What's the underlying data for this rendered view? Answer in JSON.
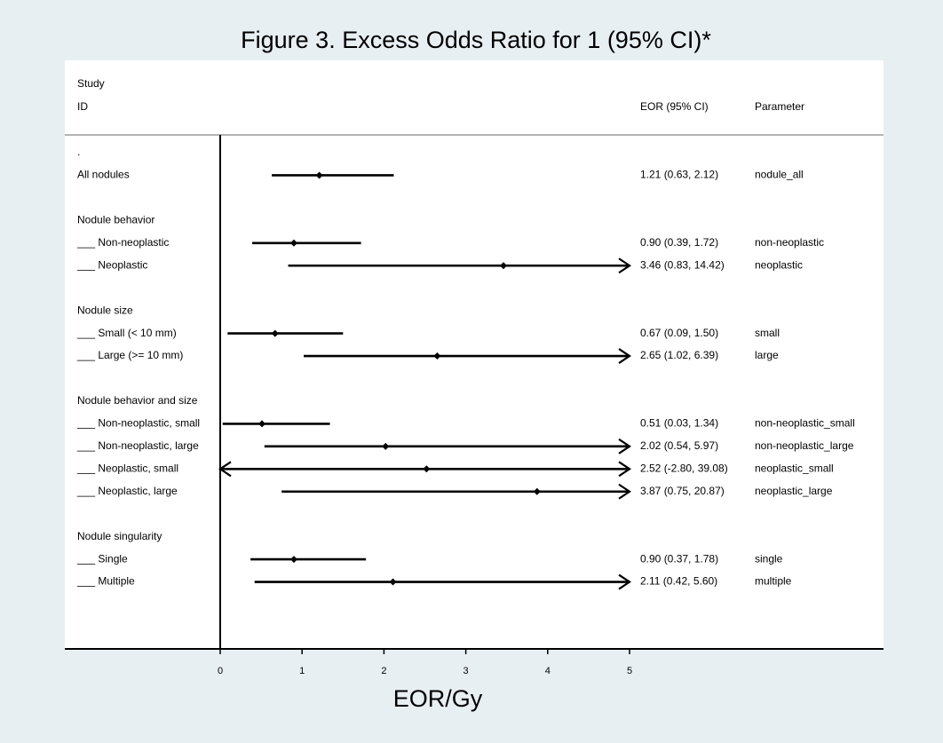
{
  "chart_data": {
    "type": "forest",
    "title": "Figure 3. Excess Odds Ratio for 1 (95% CI)*",
    "xlabel": "EOR/Gy",
    "xlim": [
      0,
      5
    ],
    "xticks": [
      0,
      1,
      2,
      3,
      4,
      5
    ],
    "header": {
      "study_line1": "Study",
      "study_line2": "ID",
      "eor_col": "EOR (95% CI)",
      "param_col": "Parameter"
    },
    "rows": [
      {
        "kind": "label",
        "label": "."
      },
      {
        "kind": "estimate",
        "label": "All nodules",
        "estimate": 1.21,
        "lower": 0.63,
        "upper": 2.12,
        "eor_text": "1.21 (0.63, 2.12)",
        "parameter": "nodule_all"
      },
      {
        "kind": "blank"
      },
      {
        "kind": "label",
        "label": "Nodule behavior"
      },
      {
        "kind": "estimate",
        "label": "___ Non-neoplastic",
        "estimate": 0.9,
        "lower": 0.39,
        "upper": 1.72,
        "eor_text": "0.90 (0.39, 1.72)",
        "parameter": "non-neoplastic"
      },
      {
        "kind": "estimate",
        "label": "___ Neoplastic",
        "estimate": 3.46,
        "lower": 0.83,
        "upper": 14.42,
        "eor_text": "3.46 (0.83, 14.42)",
        "parameter": "neoplastic"
      },
      {
        "kind": "blank"
      },
      {
        "kind": "label",
        "label": "Nodule size"
      },
      {
        "kind": "estimate",
        "label": "___ Small (< 10 mm)",
        "estimate": 0.67,
        "lower": 0.09,
        "upper": 1.5,
        "eor_text": "0.67 (0.09, 1.50)",
        "parameter": "small"
      },
      {
        "kind": "estimate",
        "label": "___ Large (>= 10 mm)",
        "estimate": 2.65,
        "lower": 1.02,
        "upper": 6.39,
        "eor_text": "2.65 (1.02, 6.39)",
        "parameter": "large"
      },
      {
        "kind": "blank"
      },
      {
        "kind": "label",
        "label": "Nodule behavior and size"
      },
      {
        "kind": "estimate",
        "label": "___ Non-neoplastic, small",
        "estimate": 0.51,
        "lower": 0.03,
        "upper": 1.34,
        "eor_text": "0.51 (0.03, 1.34)",
        "parameter": "non-neoplastic_small"
      },
      {
        "kind": "estimate",
        "label": "___ Non-neoplastic, large",
        "estimate": 2.02,
        "lower": 0.54,
        "upper": 5.97,
        "eor_text": "2.02 (0.54, 5.97)",
        "parameter": "non-neoplastic_large"
      },
      {
        "kind": "estimate",
        "label": "___ Neoplastic, small",
        "estimate": 2.52,
        "lower": -2.8,
        "upper": 39.08,
        "eor_text": "2.52 (-2.80, 39.08)",
        "parameter": "neoplastic_small"
      },
      {
        "kind": "estimate",
        "label": "___ Neoplastic, large",
        "estimate": 3.87,
        "lower": 0.75,
        "upper": 20.87,
        "eor_text": "3.87 (0.75, 20.87)",
        "parameter": "neoplastic_large"
      },
      {
        "kind": "blank"
      },
      {
        "kind": "label",
        "label": "Nodule singularity"
      },
      {
        "kind": "estimate",
        "label": "___ Single",
        "estimate": 0.9,
        "lower": 0.37,
        "upper": 1.78,
        "eor_text": "0.90 (0.37, 1.78)",
        "parameter": "single"
      },
      {
        "kind": "estimate",
        "label": "___ Multiple",
        "estimate": 2.11,
        "lower": 0.42,
        "upper": 5.6,
        "eor_text": "2.11 (0.42, 5.60)",
        "parameter": "multiple"
      }
    ],
    "colors": {
      "background": "#e8eff2",
      "panel": "#ffffff",
      "ink": "#000000",
      "separator": "#b3b3b3"
    }
  }
}
